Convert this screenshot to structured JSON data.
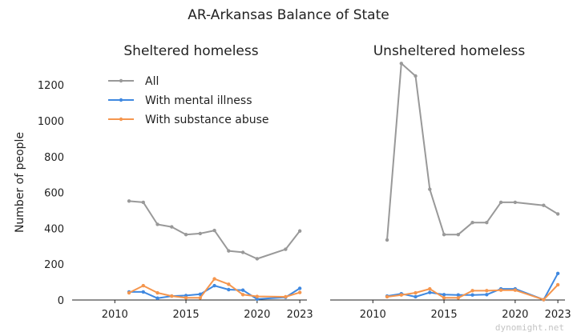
{
  "colors": {
    "all": "#999999",
    "mental": "#3f88e0",
    "substance": "#f5964e",
    "axis": "#222222"
  },
  "chart_data": {
    "type": "line",
    "title": "AR-Arkansas Balance of State",
    "ylabel": "Number of people",
    "watermark": "dynomight.net",
    "xlim": [
      2007,
      2023.5
    ],
    "ylim": [
      0,
      1250
    ],
    "xticks": [
      2010,
      2015,
      2020,
      2023
    ],
    "yticks": [
      0,
      200,
      400,
      600,
      800,
      1000,
      1200
    ],
    "legend": {
      "placement": "top-left of left panel",
      "entries": [
        "All",
        "With mental illness",
        "With substance abuse"
      ]
    },
    "panels": [
      {
        "title": "Sheltered homeless",
        "series": [
          {
            "name": "All",
            "color_key": "all",
            "x": [
              2011,
              2012,
              2013,
              2014,
              2015,
              2016,
              2017,
              2018,
              2019,
              2020,
              2022,
              2023
            ],
            "y": [
              552,
              545,
              422,
              408,
              365,
              371,
              388,
              274,
              266,
              230,
              283,
              385
            ]
          },
          {
            "name": "With mental illness",
            "color_key": "mental",
            "x": [
              2011,
              2012,
              2013,
              2014,
              2015,
              2016,
              2017,
              2018,
              2019,
              2020,
              2022,
              2023
            ],
            "y": [
              45,
              45,
              10,
              22,
              25,
              32,
              80,
              58,
              55,
              5,
              15,
              65
            ]
          },
          {
            "name": "With substance abuse",
            "color_key": "substance",
            "x": [
              2011,
              2012,
              2013,
              2014,
              2015,
              2016,
              2017,
              2018,
              2019,
              2020,
              2022,
              2023
            ],
            "y": [
              40,
              80,
              40,
              22,
              12,
              12,
              118,
              88,
              30,
              20,
              18,
              42
            ]
          }
        ]
      },
      {
        "title": "Unsheltered homeless",
        "series": [
          {
            "name": "All",
            "color_key": "all",
            "x": [
              2011,
              2012,
              2013,
              2014,
              2015,
              2016,
              2017,
              2018,
              2019,
              2020,
              2022,
              2023
            ],
            "y": [
              335,
              1320,
              1250,
              618,
              365,
              365,
              432,
              432,
              545,
              545,
              528,
              480
            ]
          },
          {
            "name": "With mental illness",
            "color_key": "mental",
            "x": [
              2011,
              2012,
              2013,
              2014,
              2015,
              2016,
              2017,
              2018,
              2019,
              2020,
              2022,
              2023
            ],
            "y": [
              22,
              35,
              18,
              42,
              30,
              28,
              28,
              30,
              62,
              62,
              2,
              148
            ]
          },
          {
            "name": "With substance abuse",
            "color_key": "substance",
            "x": [
              2011,
              2012,
              2013,
              2014,
              2015,
              2016,
              2017,
              2018,
              2019,
              2020,
              2022,
              2023
            ],
            "y": [
              18,
              28,
              40,
              62,
              12,
              12,
              52,
              52,
              55,
              55,
              2,
              85
            ]
          }
        ]
      }
    ]
  }
}
